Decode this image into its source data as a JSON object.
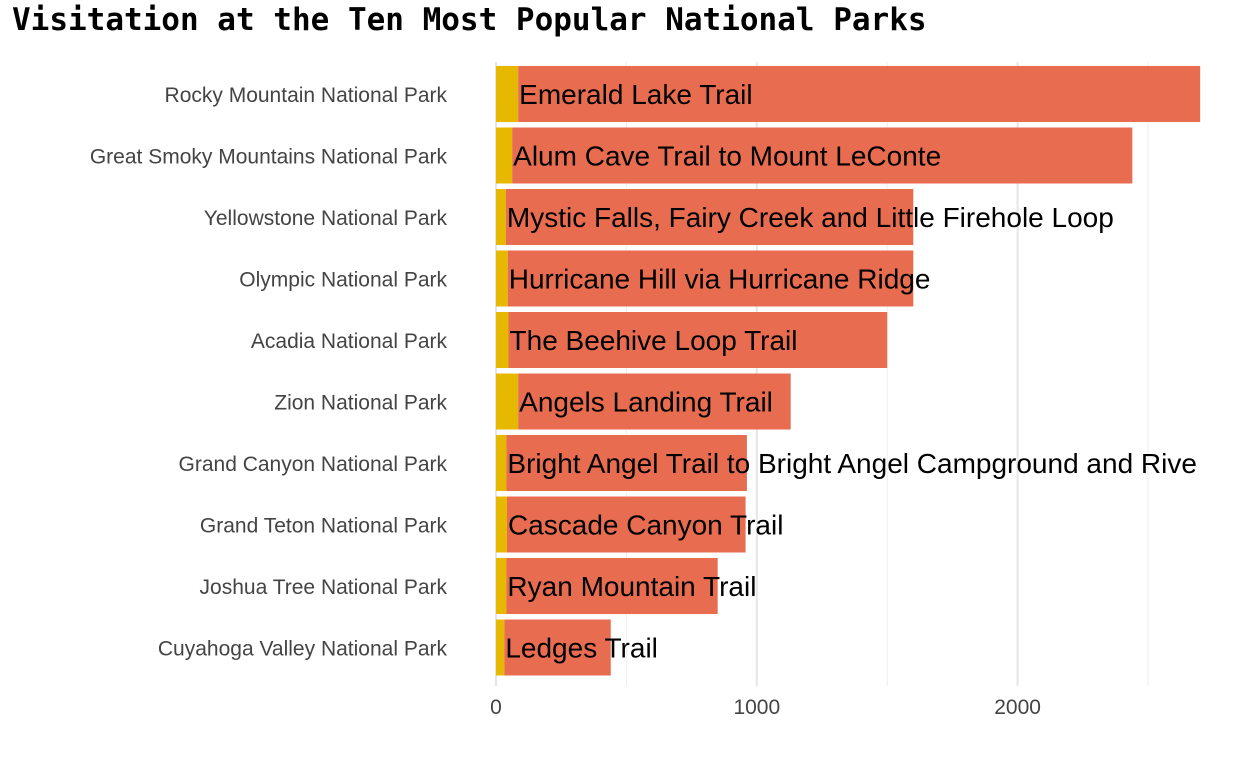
{
  "chart_data": {
    "type": "bar",
    "orientation": "horizontal",
    "stacked": true,
    "title": "Visitation at the Ten Most Popular National Parks",
    "xlabel": "",
    "ylabel": "",
    "xlim": [
      0,
      2700
    ],
    "x_ticks": [
      0,
      1000,
      2000
    ],
    "grid": true,
    "legend": "none",
    "categories": [
      "Rocky Mountain National Park",
      "Great Smoky Mountains National Park",
      "Yellowstone National Park",
      "Olympic National Park",
      "Acadia National Park",
      "Zion National Park",
      "Grand Canyon National Park",
      "Grand Teton National Park",
      "Joshua Tree National Park",
      "Cuyahoga Valley National Park"
    ],
    "trail_labels": [
      "Emerald Lake Trail",
      "Alum Cave Trail to Mount LeConte",
      "Mystic Falls, Fairy Creek and Little Firehole Loop",
      "Hurricane Hill via Hurricane Ridge",
      "The Beehive Loop Trail",
      "Angels Landing Trail",
      "Bright Angel Trail to Bright Angel Campground and Rive",
      "Cascade Canyon Trail",
      "Ryan Mountain Trail",
      "Ledges Trail"
    ],
    "series": [
      {
        "color": "#E7B800",
        "values": [
          85,
          62,
          38,
          45,
          48,
          85,
          40,
          42,
          40,
          32
        ]
      },
      {
        "color": "#E86C50",
        "values": [
          2615,
          2378,
          1562,
          1555,
          1452,
          1045,
          922,
          915,
          810,
          408
        ]
      }
    ]
  }
}
